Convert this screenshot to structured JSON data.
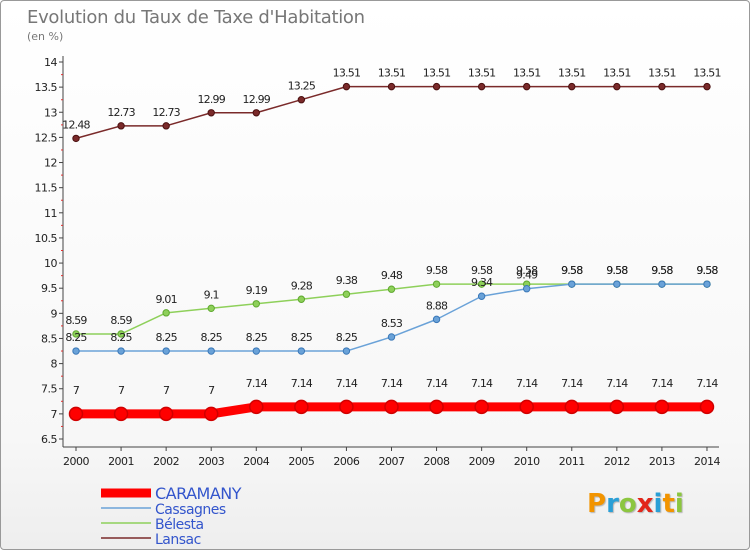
{
  "header": {
    "title": "Evolution du Taux de Taxe d'Habitation",
    "subtitle": "(en %)"
  },
  "logo": {
    "text": "Proxiti",
    "colors": [
      "#f29400",
      "#2a9fd6",
      "#8cc63f",
      "#e2261a",
      "#2a9fd6",
      "#f29400",
      "#8cc63f"
    ]
  },
  "chart_data": {
    "type": "line",
    "title": "Evolution du Taux de Taxe d'Habitation",
    "subtitle": "(en %)",
    "xlabel": "",
    "ylabel": "",
    "x": [
      "2000",
      "2001",
      "2002",
      "2003",
      "2004",
      "2005",
      "2006",
      "2007",
      "2008",
      "2009",
      "2010",
      "2011",
      "2012",
      "2013",
      "2014"
    ],
    "ylim": [
      6.5,
      14
    ],
    "yticks": [
      "6.5",
      "7",
      "7.5",
      "8",
      "8.5",
      "9",
      "9.5",
      "10",
      "10.5",
      "11",
      "11.5",
      "12",
      "12.5",
      "13",
      "13.5",
      "14"
    ],
    "grid": false,
    "legend_position": "bottom-left",
    "series": [
      {
        "name": "CARAMANY",
        "color": "#ff0000",
        "values": [
          7,
          7,
          7,
          7,
          7.14,
          7.14,
          7.14,
          7.14,
          7.14,
          7.14,
          7.14,
          7.14,
          7.14,
          7.14,
          7.14
        ],
        "labels": [
          "7",
          "7",
          "7",
          "7",
          "7.14",
          "7.14",
          "7.14",
          "7.14",
          "7.14",
          "7.14",
          "7.14",
          "7.14",
          "7.14",
          "7.14",
          "7.14"
        ]
      },
      {
        "name": "Cassagnes",
        "color": "#6aa2d8",
        "values": [
          8.25,
          8.25,
          8.25,
          8.25,
          8.25,
          8.25,
          8.25,
          8.53,
          8.88,
          9.34,
          9.49,
          9.58,
          9.58,
          9.58,
          9.58
        ],
        "labels": [
          "8.25",
          "8.25",
          "8.25",
          "8.25",
          "8.25",
          "8.25",
          "8.25",
          "8.53",
          "8.88",
          "9.34",
          "9.49",
          "9.58",
          "9.58",
          "9.58",
          "9.58"
        ]
      },
      {
        "name": "Bélesta",
        "color": "#8ed05a",
        "values": [
          8.59,
          8.59,
          9.01,
          9.1,
          9.19,
          9.28,
          9.38,
          9.48,
          9.58,
          9.58,
          9.58,
          9.58,
          9.58,
          9.58,
          9.58
        ],
        "labels": [
          "8.59",
          "8.59",
          "9.01",
          "9.1",
          "9.19",
          "9.28",
          "9.38",
          "9.48",
          "9.58",
          "9.58",
          "9.58",
          "9.58",
          "9.58",
          "9.58",
          "9.58"
        ]
      },
      {
        "name": "Lansac",
        "color": "#7a2a2a",
        "values": [
          12.48,
          12.73,
          12.73,
          12.99,
          12.99,
          13.25,
          13.51,
          13.51,
          13.51,
          13.51,
          13.51,
          13.51,
          13.51,
          13.51,
          13.51
        ],
        "labels": [
          "12.48",
          "12.73",
          "12.73",
          "12.99",
          "12.99",
          "13.25",
          "13.51",
          "13.51",
          "13.51",
          "13.51",
          "13.51",
          "13.51",
          "13.51",
          "13.51",
          "13.51"
        ]
      }
    ]
  }
}
